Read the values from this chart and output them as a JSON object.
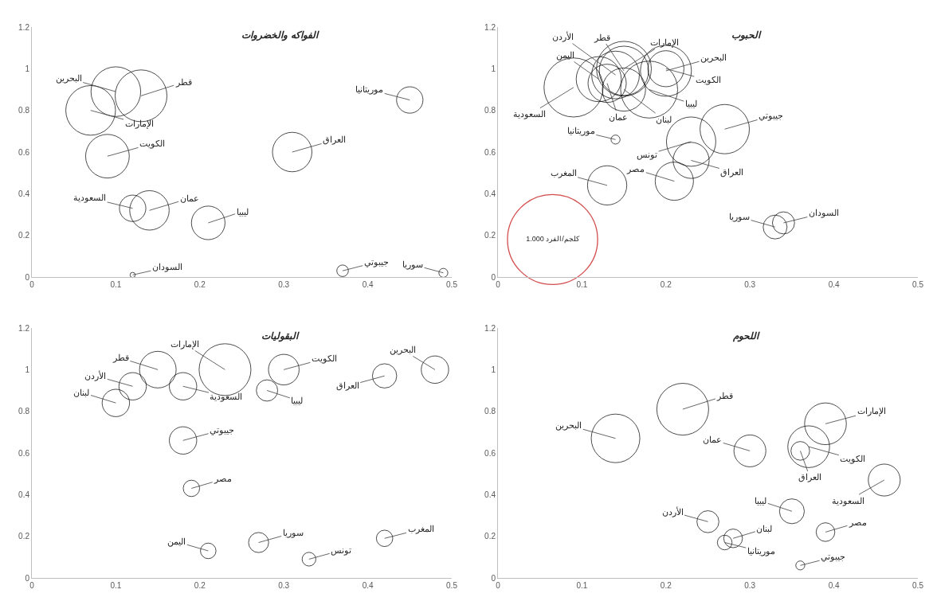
{
  "chart_data": [
    {
      "type": "bubble",
      "title": "الفواكه والخضروات",
      "color": "#000000",
      "xlim": [
        0,
        0.5
      ],
      "xticks": [
        0,
        0.1,
        0.2,
        0.3,
        0.4,
        0.5
      ],
      "ylim": [
        0,
        1.2
      ],
      "yticks": [
        0,
        0.2,
        0.4,
        0.6,
        0.8,
        1,
        1.2
      ],
      "x": [
        0.07,
        0.1,
        0.13,
        0.09,
        0.14,
        0.12,
        0.21,
        0.31,
        0.45,
        0.12,
        0.37,
        0.49
      ],
      "values": [
        0.8,
        0.89,
        0.87,
        0.58,
        0.32,
        0.33,
        0.26,
        0.6,
        0.85,
        0.01,
        0.03,
        0.02
      ],
      "sizes": [
        0.92,
        0.92,
        1,
        0.71,
        0.58,
        0.26,
        0.42,
        0.58,
        0.26,
        0.01,
        0.05,
        0.03
      ],
      "annotations": [
        {
          "text": "الإمارات",
          "x": 0.07,
          "y": 0.8
        },
        {
          "text": "البحرين",
          "x": 0.1,
          "y": 0.89
        },
        {
          "text": "قطر",
          "x": 0.13,
          "y": 0.87
        },
        {
          "text": "الكويت",
          "x": 0.09,
          "y": 0.58
        },
        {
          "text": "عمان",
          "x": 0.14,
          "y": 0.32
        },
        {
          "text": "السعودية",
          "x": 0.12,
          "y": 0.33
        },
        {
          "text": "ليبيا",
          "x": 0.21,
          "y": 0.26
        },
        {
          "text": "العراق",
          "x": 0.31,
          "y": 0.6
        },
        {
          "text": "موريتانيا",
          "x": 0.45,
          "y": 0.85
        },
        {
          "text": "السودان",
          "x": 0.12,
          "y": 0.01
        },
        {
          "text": "جيبوتي",
          "x": 0.37,
          "y": 0.03
        },
        {
          "text": "سوريا",
          "x": 0.49,
          "y": 0.02
        }
      ]
    },
    {
      "type": "bubble",
      "title": "الحبوب",
      "color": "#000000",
      "xlim": [
        0,
        0.5
      ],
      "xticks": [
        0,
        0.1,
        0.2,
        0.3,
        0.4,
        0.5
      ],
      "ylim": [
        0,
        1.2
      ],
      "yticks": [
        0,
        0.2,
        0.4,
        0.6,
        0.8,
        1,
        1.2
      ],
      "size_legend": [
        {
          "value": 1,
          "label": "1.000 كلجم/الفرد"
        }
      ],
      "x": [
        0.09,
        0.12,
        0.13,
        0.15,
        0.15,
        0.14,
        0.15,
        0.18,
        0.2,
        0.2,
        0.23,
        0.27,
        0.23,
        0.21,
        0.13,
        0.34,
        0.33,
        0.14
      ],
      "values": [
        0.91,
        0.95,
        0.93,
        1.0,
        0.99,
        0.97,
        0.9,
        0.9,
        0.99,
        1.0,
        0.65,
        0.71,
        0.56,
        0.46,
        0.44,
        0.26,
        0.24,
        0.66
      ],
      "sizes": [
        0.43,
        0.25,
        0.18,
        0.37,
        0.3,
        0.28,
        0.23,
        0.4,
        0.32,
        0.16,
        0.3,
        0.3,
        0.16,
        0.18,
        0.19,
        0.06,
        0.07,
        0.01
      ],
      "annotations": [
        {
          "text": "السعودية",
          "x": 0.09,
          "y": 0.91
        },
        {
          "text": "اليمن",
          "x": 0.12,
          "y": 0.95
        },
        {
          "text": "عمان",
          "x": 0.13,
          "y": 0.93
        },
        {
          "text": "الإمارات",
          "x": 0.15,
          "y": 1.0
        },
        {
          "text": "قطر",
          "x": 0.15,
          "y": 0.99
        },
        {
          "text": "الأردن",
          "x": 0.14,
          "y": 0.97
        },
        {
          "text": "لبنان",
          "x": 0.15,
          "y": 0.9
        },
        {
          "text": "ليبيا",
          "x": 0.18,
          "y": 0.9
        },
        {
          "text": "البحرين",
          "x": 0.2,
          "y": 0.99
        },
        {
          "text": "الكويت",
          "x": 0.2,
          "y": 1.0
        },
        {
          "text": "تونس",
          "x": 0.23,
          "y": 0.65
        },
        {
          "text": "جيبوتي",
          "x": 0.27,
          "y": 0.71
        },
        {
          "text": "العراق",
          "x": 0.23,
          "y": 0.56
        },
        {
          "text": "مصر",
          "x": 0.21,
          "y": 0.46
        },
        {
          "text": "المغرب",
          "x": 0.13,
          "y": 0.44
        },
        {
          "text": "السودان",
          "x": 0.34,
          "y": 0.26
        },
        {
          "text": "سوريا",
          "x": 0.33,
          "y": 0.24
        },
        {
          "text": "موريتانيا",
          "x": 0.14,
          "y": 0.66
        }
      ]
    },
    {
      "type": "bubble",
      "title": "البقوليات",
      "color": "#000000",
      "xlim": [
        0,
        0.5
      ],
      "xticks": [
        0,
        0.1,
        0.2,
        0.3,
        0.4,
        0.5
      ],
      "ylim": [
        0,
        1.2
      ],
      "yticks": [
        0,
        0.2,
        0.4,
        0.6,
        0.8,
        1,
        1.2
      ],
      "x": [
        0.15,
        0.23,
        0.3,
        0.48,
        0.42,
        0.12,
        0.18,
        0.28,
        0.1,
        0.18,
        0.19,
        0.21,
        0.27,
        0.33,
        0.42
      ],
      "values": [
        1.0,
        1.0,
        1.0,
        1.0,
        0.97,
        0.92,
        0.92,
        0.9,
        0.84,
        0.66,
        0.43,
        0.13,
        0.17,
        0.09,
        0.19
      ],
      "sizes": [
        0.5,
        1,
        0.35,
        0.28,
        0.22,
        0.28,
        0.28,
        0.17,
        0.28,
        0.28,
        0.1,
        0.09,
        0.15,
        0.07,
        0.1
      ],
      "annotations": [
        {
          "text": "قطر",
          "x": 0.15,
          "y": 1.0
        },
        {
          "text": "الإمارات",
          "x": 0.23,
          "y": 1.0
        },
        {
          "text": "الكويت",
          "x": 0.3,
          "y": 1.0
        },
        {
          "text": "البحرين",
          "x": 0.48,
          "y": 1.0
        },
        {
          "text": "العراق",
          "x": 0.42,
          "y": 0.97
        },
        {
          "text": "الأردن",
          "x": 0.12,
          "y": 0.92
        },
        {
          "text": "السعودية",
          "x": 0.18,
          "y": 0.92
        },
        {
          "text": "ليبيا",
          "x": 0.28,
          "y": 0.9
        },
        {
          "text": "لبنان",
          "x": 0.1,
          "y": 0.84
        },
        {
          "text": "جيبوتي",
          "x": 0.18,
          "y": 0.66
        },
        {
          "text": "مصر",
          "x": 0.19,
          "y": 0.43
        },
        {
          "text": "اليمن",
          "x": 0.21,
          "y": 0.13
        },
        {
          "text": "سوريا",
          "x": 0.27,
          "y": 0.17
        },
        {
          "text": "تونس",
          "x": 0.33,
          "y": 0.09
        },
        {
          "text": "المغرب",
          "x": 0.42,
          "y": 0.19
        }
      ]
    },
    {
      "type": "bubble",
      "title": "اللحوم",
      "color": "#000000",
      "xlim": [
        0,
        0.5
      ],
      "xticks": [
        0,
        0.1,
        0.2,
        0.3,
        0.4,
        0.5
      ],
      "ylim": [
        0,
        1.2
      ],
      "yticks": [
        0,
        0.2,
        0.4,
        0.6,
        0.8,
        1,
        1.2
      ],
      "x": [
        0.22,
        0.14,
        0.39,
        0.37,
        0.36,
        0.3,
        0.46,
        0.35,
        0.25,
        0.28,
        0.27,
        0.39,
        0.36
      ],
      "values": [
        0.81,
        0.67,
        0.74,
        0.63,
        0.61,
        0.61,
        0.47,
        0.32,
        0.27,
        0.19,
        0.17,
        0.22,
        0.06
      ],
      "sizes": [
        1,
        0.88,
        0.65,
        0.65,
        0.13,
        0.38,
        0.38,
        0.23,
        0.18,
        0.13,
        0.08,
        0.13,
        0.03
      ],
      "annotations": [
        {
          "text": "قطر",
          "x": 0.22,
          "y": 0.81
        },
        {
          "text": "البحرين",
          "x": 0.14,
          "y": 0.67
        },
        {
          "text": "الإمارات",
          "x": 0.39,
          "y": 0.74
        },
        {
          "text": "الكويت",
          "x": 0.37,
          "y": 0.63
        },
        {
          "text": "العراق",
          "x": 0.36,
          "y": 0.61
        },
        {
          "text": "عمان",
          "x": 0.3,
          "y": 0.61
        },
        {
          "text": "السعودية",
          "x": 0.46,
          "y": 0.47
        },
        {
          "text": "ليبيا",
          "x": 0.35,
          "y": 0.32
        },
        {
          "text": "الأردن",
          "x": 0.25,
          "y": 0.27
        },
        {
          "text": "لبنان",
          "x": 0.28,
          "y": 0.19
        },
        {
          "text": "موريتانيا",
          "x": 0.27,
          "y": 0.17
        },
        {
          "text": "مصر",
          "x": 0.39,
          "y": 0.22
        },
        {
          "text": "جيبوتي",
          "x": 0.36,
          "y": 0.06
        }
      ]
    }
  ]
}
